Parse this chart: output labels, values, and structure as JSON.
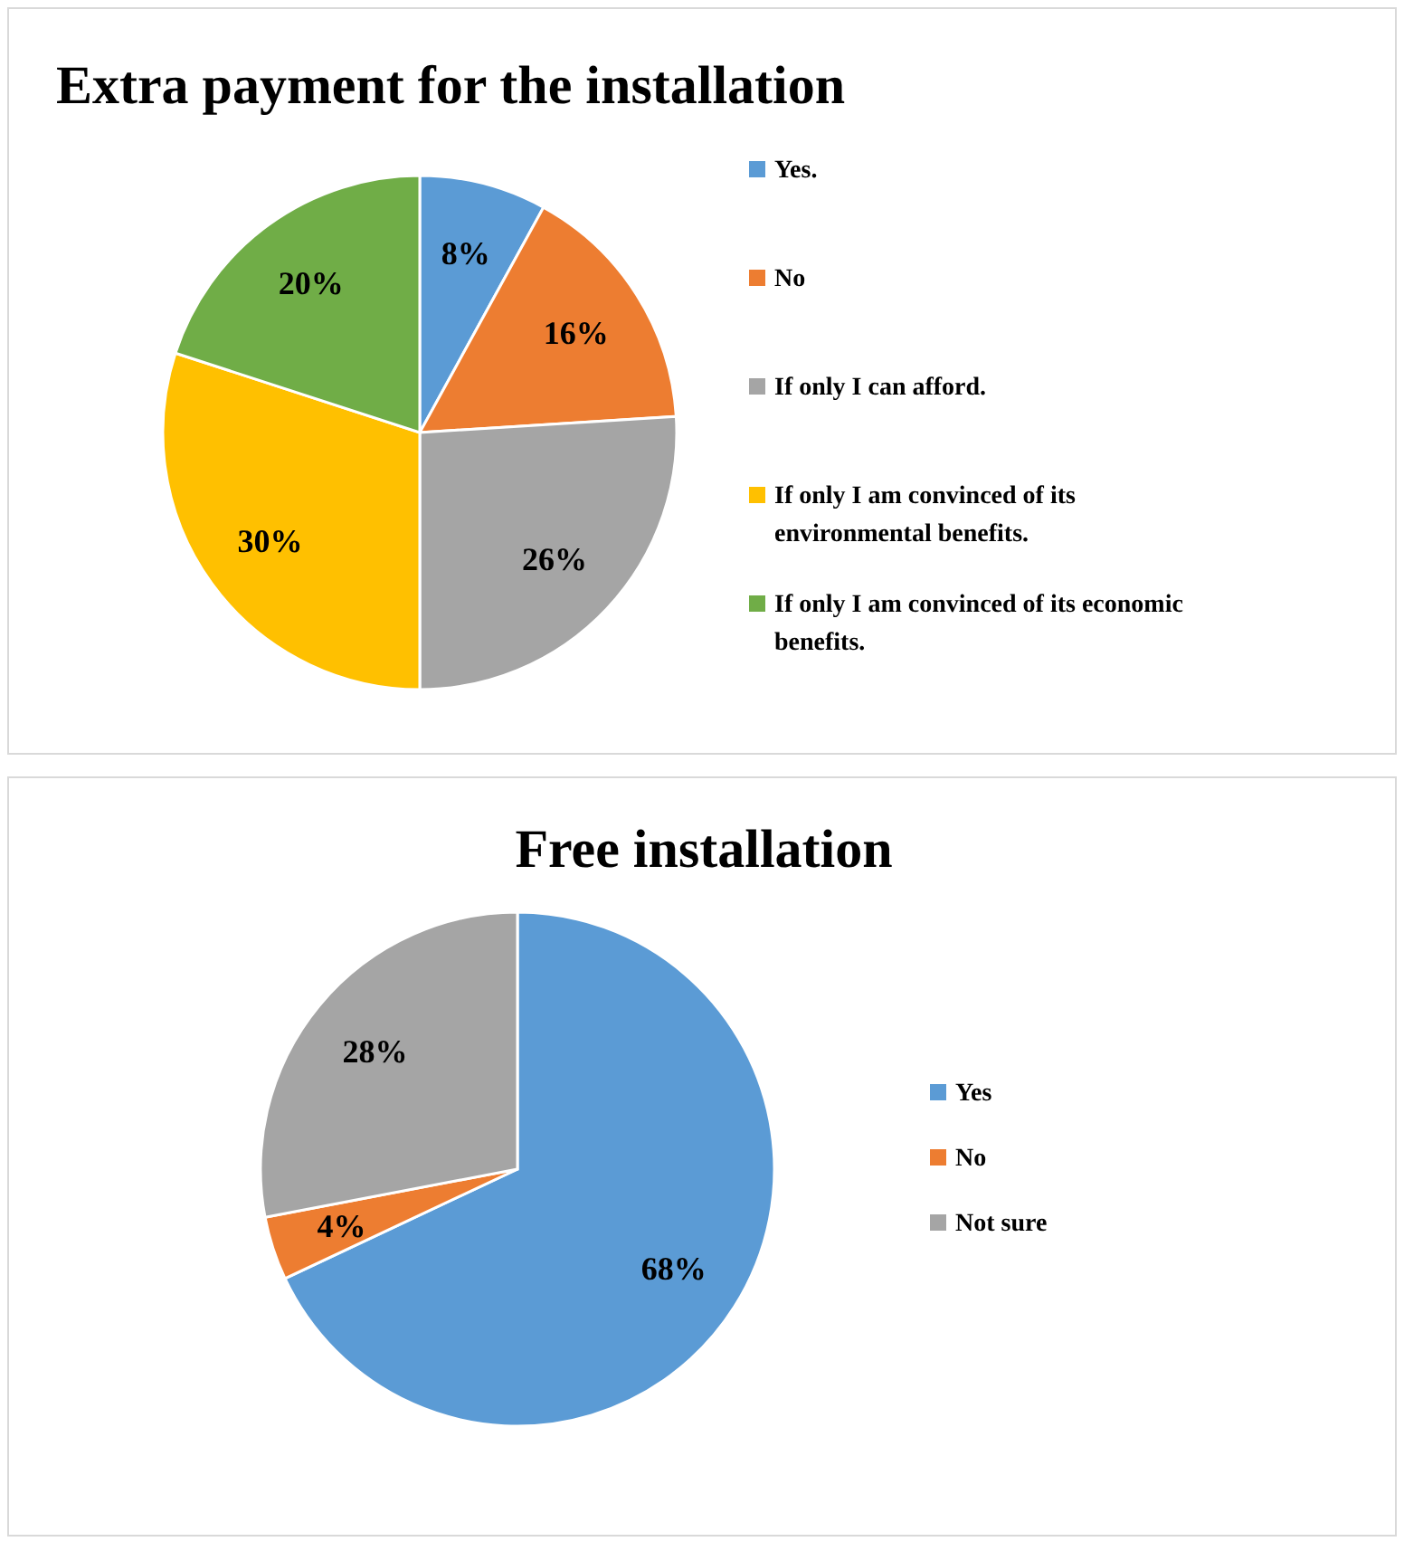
{
  "chart_data": [
    {
      "type": "pie",
      "title": "Extra payment for the installation",
      "categories": [
        "Yes.",
        "No",
        "If only I can afford.",
        "If only I am convinced of its environmental benefits.",
        "If only I am convinced of its economic benefits."
      ],
      "values": [
        8,
        16,
        26,
        30,
        20
      ],
      "value_labels": [
        "8%",
        "16%",
        "26%",
        "30%",
        "20%"
      ],
      "colors": [
        "#5b9bd5",
        "#ed7d31",
        "#a5a5a5",
        "#ffc000",
        "#70ad47"
      ],
      "legend": "right"
    },
    {
      "type": "pie",
      "title": "Free installation",
      "categories": [
        "Yes",
        "No",
        "Not sure"
      ],
      "values": [
        68,
        4,
        28
      ],
      "value_labels": [
        "68%",
        "4%",
        "28%"
      ],
      "colors": [
        "#5b9bd5",
        "#ed7d31",
        "#a5a5a5"
      ],
      "legend": "right"
    }
  ]
}
